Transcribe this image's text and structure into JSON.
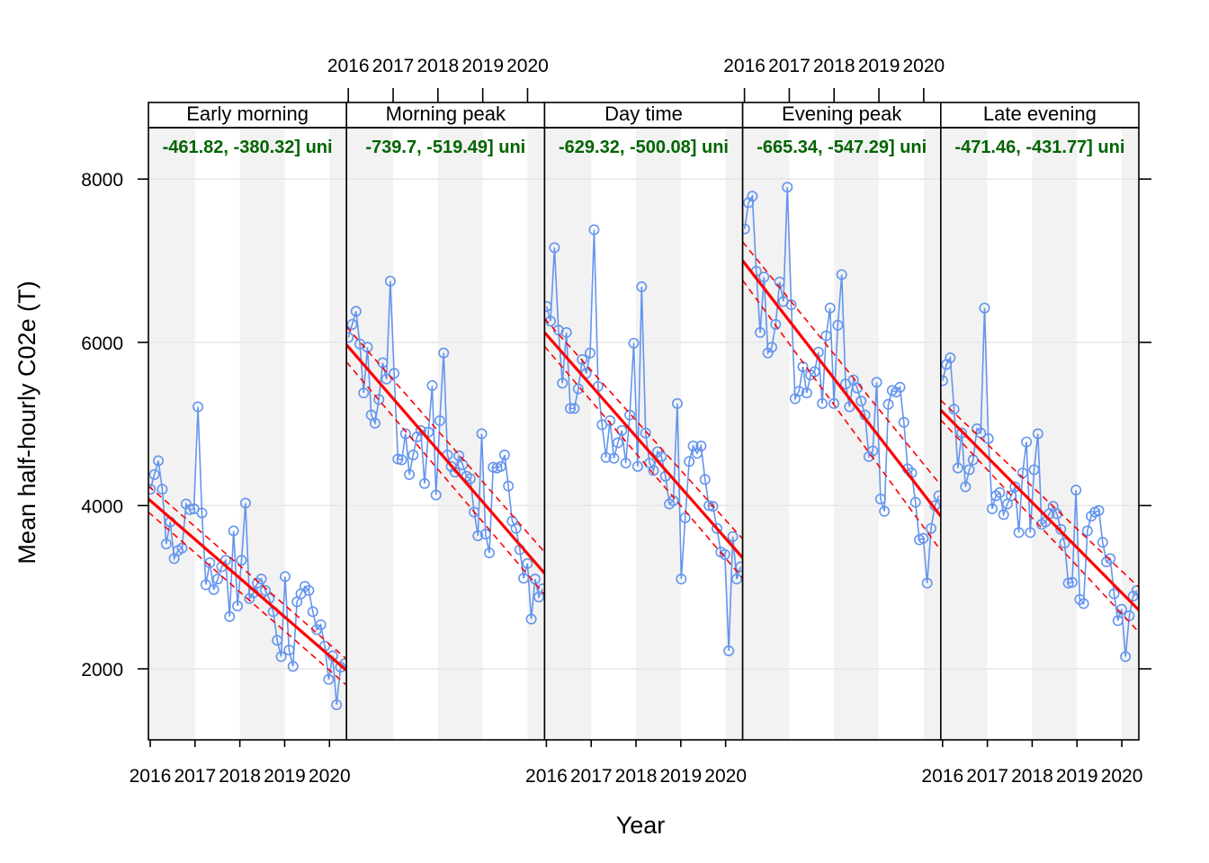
{
  "chart_data": {
    "type": "line",
    "xlabel": "Year",
    "ylabel": "Mean half-hourly C02e (T)",
    "x_ticks": [
      "2016",
      "2017",
      "2018",
      "2019",
      "2020"
    ],
    "y_ticks": [
      2000,
      4000,
      6000,
      8000
    ],
    "ylim": [
      1130,
      8630
    ],
    "xlim": [
      2015.96,
      2020.38
    ],
    "grid": true,
    "year_shading": true,
    "colors": {
      "points": "#6495ed",
      "trend": "#ff0000",
      "trend_label": "#006400",
      "shade": "#f2f2f2",
      "grid": "#e6e6e6"
    },
    "panels": [
      {
        "name": "Early morning",
        "trend_label": "-461.82, -380.32] uni",
        "trend": {
          "start": 4080,
          "end": 1980,
          "lo_start": 3920,
          "lo_end": 1800,
          "hi_start": 4240,
          "hi_end": 2120
        },
        "values": [
          4200,
          4380,
          4550,
          4200,
          3530,
          3800,
          3350,
          3450,
          3480,
          4020,
          3950,
          3960,
          5210,
          3910,
          3030,
          3300,
          2970,
          3100,
          3250,
          3330,
          2640,
          3690,
          2770,
          3330,
          4030,
          2860,
          2930,
          3050,
          3100,
          2960,
          2860,
          2700,
          2350,
          2150,
          3130,
          2230,
          2030,
          2820,
          2920,
          3010,
          2960,
          2700,
          2480,
          2540,
          2280,
          1870,
          2160,
          1560,
          2020,
          2060
        ]
      },
      {
        "name": "Morning peak",
        "trend_label": "-739.7, -519.49] uni",
        "trend": {
          "start": 5970,
          "end": 3170,
          "lo_start": 5760,
          "lo_end": 2910,
          "hi_start": 6190,
          "hi_end": 3430
        },
        "values": [
          6060,
          6220,
          6380,
          5980,
          5380,
          5940,
          5110,
          5010,
          5300,
          5750,
          5550,
          6750,
          5620,
          4570,
          4560,
          4880,
          4380,
          4620,
          4840,
          4920,
          4270,
          4900,
          5470,
          4130,
          5040,
          5870,
          4620,
          4480,
          4410,
          4610,
          4500,
          4360,
          4330,
          3920,
          3630,
          4880,
          3650,
          3420,
          4470,
          4460,
          4480,
          4620,
          4240,
          3810,
          3720,
          3460,
          3110,
          3290,
          2610,
          3100,
          2880,
          2980
        ]
      },
      {
        "name": "Day time",
        "trend_label": "-629.32, -500.08] uni",
        "trend": {
          "start": 6120,
          "end": 3360,
          "lo_start": 5950,
          "lo_end": 3110,
          "hi_start": 6290,
          "hi_end": 3590
        },
        "values": [
          6440,
          6260,
          7160,
          6150,
          5500,
          6120,
          5190,
          5190,
          5430,
          5790,
          5620,
          5870,
          7380,
          5460,
          4990,
          4590,
          5040,
          4580,
          4770,
          4920,
          4520,
          5110,
          5990,
          4480,
          6680,
          4890,
          4520,
          4430,
          4660,
          4600,
          4360,
          4020,
          4060,
          5250,
          3100,
          3850,
          4540,
          4730,
          4640,
          4730,
          4320,
          4000,
          3990,
          3720,
          3430,
          3400,
          2220,
          3620,
          3100,
          3250
        ]
      },
      {
        "name": "Evening peak",
        "trend_label": "-665.34, -547.29] uni",
        "trend": {
          "start": 7000,
          "end": 3870,
          "lo_start": 6760,
          "lo_end": 3450,
          "hi_start": 7230,
          "hi_end": 4250
        },
        "values": [
          7390,
          7710,
          7790,
          6870,
          6120,
          6800,
          5870,
          5940,
          6220,
          6740,
          6500,
          7900,
          6460,
          5310,
          5400,
          5700,
          5380,
          5600,
          5640,
          5880,
          5250,
          6080,
          6420,
          5250,
          6210,
          6830,
          5490,
          5210,
          5540,
          5440,
          5280,
          5110,
          4600,
          4670,
          5510,
          4080,
          3930,
          5240,
          5410,
          5390,
          5450,
          5020,
          4450,
          4400,
          4040,
          3580,
          3600,
          3050,
          3720,
          4000,
          4120
        ]
      },
      {
        "name": "Late evening",
        "trend_label": "-471.46, -431.77] uni",
        "trend": {
          "start": 5170,
          "end": 2720,
          "lo_start": 5050,
          "lo_end": 2450,
          "hi_start": 5290,
          "hi_end": 3000
        },
        "values": [
          5530,
          5730,
          5810,
          5180,
          4460,
          4890,
          4230,
          4440,
          4560,
          4940,
          4890,
          6420,
          4820,
          3960,
          4120,
          4160,
          3890,
          4020,
          4120,
          4230,
          3670,
          4400,
          4780,
          3670,
          4440,
          4880,
          3770,
          3800,
          3900,
          3990,
          3900,
          3710,
          3540,
          3050,
          3060,
          4190,
          2850,
          2800,
          3690,
          3870,
          3920,
          3940,
          3550,
          3310,
          3350,
          2920,
          2590,
          2730,
          2150,
          2650,
          2890,
          2960
        ]
      }
    ]
  }
}
